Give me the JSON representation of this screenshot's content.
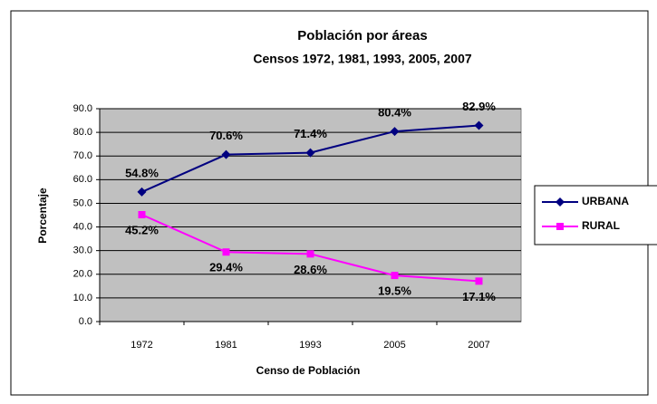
{
  "chart_data": {
    "type": "line",
    "title": "Población por áreas",
    "subtitle": "Censos 1972, 1981, 1993, 2005, 2007",
    "x_label": "Censo de Población",
    "y_label": "Porcentaje",
    "categories": [
      "1972",
      "1981",
      "1993",
      "2005",
      "2007"
    ],
    "series": [
      {
        "name": "URBANA",
        "color": "#000080",
        "marker": "diamond",
        "values": [
          54.8,
          70.6,
          71.4,
          80.4,
          82.9
        ],
        "value_labels": [
          "54.8%",
          "70.6%",
          "71.4%",
          "80.4%",
          "82.9%"
        ]
      },
      {
        "name": "RURAL",
        "color": "#ff00ff",
        "marker": "square",
        "values": [
          45.2,
          29.4,
          28.6,
          19.5,
          17.1
        ],
        "value_labels": [
          "45.2%",
          "29.4%",
          "28.6%",
          "19.5%",
          "17.1%"
        ]
      }
    ],
    "ylim": [
      0,
      90
    ],
    "yticks": [
      {
        "value": 0,
        "label": "0.0"
      },
      {
        "value": 10,
        "label": "10.0"
      },
      {
        "value": 20,
        "label": "20.0"
      },
      {
        "value": 30,
        "label": "30.0"
      },
      {
        "value": 40,
        "label": "40.0"
      },
      {
        "value": 50,
        "label": "50.0"
      },
      {
        "value": 60,
        "label": "60.0"
      },
      {
        "value": 70,
        "label": "70.0"
      },
      {
        "value": 80,
        "label": "80.0"
      },
      {
        "value": 90,
        "label": "90.0"
      }
    ],
    "grid": true,
    "plot_background": "#c0c0c0",
    "legend": "right"
  }
}
